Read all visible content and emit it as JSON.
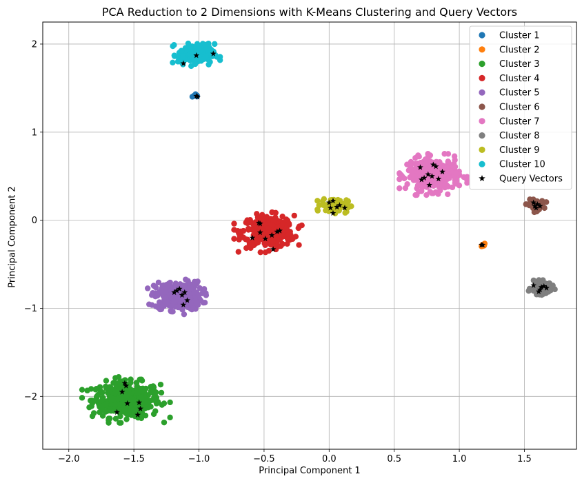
{
  "chart_data": {
    "type": "scatter",
    "title": "PCA Reduction to 2 Dimensions with K-Means Clustering and Query Vectors",
    "xlabel": "Principal Component 1",
    "ylabel": "Principal Component 2",
    "xlim": [
      -2.2,
      1.9
    ],
    "ylim": [
      -2.6,
      2.25
    ],
    "x_ticks": [
      -2.0,
      -1.5,
      -1.0,
      -0.5,
      0.0,
      0.5,
      1.0,
      1.5
    ],
    "x_tick_labels": [
      "−2.0",
      "−1.5",
      "−1.0",
      "−0.5",
      "0.0",
      "0.5",
      "1.0",
      "1.5"
    ],
    "y_ticks": [
      -2,
      -1,
      0,
      1,
      2
    ],
    "y_tick_labels": [
      "−2",
      "−1",
      "0",
      "1",
      "2"
    ],
    "grid": true,
    "legend_position": "top-right",
    "series": [
      {
        "name": "Cluster 1",
        "color": "#1f77b4",
        "center": [
          -1.02,
          1.41
        ],
        "spread": [
          0.015,
          0.015
        ],
        "count": 8
      },
      {
        "name": "Cluster 2",
        "color": "#ff7f0e",
        "center": [
          1.18,
          -0.28
        ],
        "spread": [
          0.012,
          0.012
        ],
        "count": 8
      },
      {
        "name": "Cluster 3",
        "color": "#2ca02c",
        "center": [
          -1.56,
          -2.04
        ],
        "spread": [
          0.13,
          0.1
        ],
        "count": 380
      },
      {
        "name": "Cluster 4",
        "color": "#d62728",
        "center": [
          -0.47,
          -0.13
        ],
        "spread": [
          0.1,
          0.09
        ],
        "count": 300
      },
      {
        "name": "Cluster 5",
        "color": "#9467bd",
        "center": [
          -1.16,
          -0.86
        ],
        "spread": [
          0.09,
          0.08
        ],
        "count": 260
      },
      {
        "name": "Cluster 6",
        "color": "#8c564b",
        "center": [
          1.59,
          0.17
        ],
        "spread": [
          0.03,
          0.03
        ],
        "count": 60
      },
      {
        "name": "Cluster 7",
        "color": "#e377c2",
        "center": [
          0.8,
          0.52
        ],
        "spread": [
          0.1,
          0.09
        ],
        "count": 300
      },
      {
        "name": "Cluster 8",
        "color": "#7f7f7f",
        "center": [
          1.63,
          -0.77
        ],
        "spread": [
          0.04,
          0.035
        ],
        "count": 90
      },
      {
        "name": "Cluster 9",
        "color": "#bcbd22",
        "center": [
          0.04,
          0.17
        ],
        "spread": [
          0.05,
          0.04
        ],
        "count": 100
      },
      {
        "name": "Cluster 10",
        "color": "#17becf",
        "center": [
          -1.02,
          1.88
        ],
        "spread": [
          0.07,
          0.06
        ],
        "count": 150
      }
    ],
    "query_vectors": {
      "name": "Query Vectors",
      "color": "#000000",
      "points": [
        [
          -1.02,
          1.41
        ],
        [
          -1.01,
          1.4
        ],
        [
          -1.12,
          1.78
        ],
        [
          -1.02,
          1.87
        ],
        [
          -0.89,
          1.89
        ],
        [
          1.18,
          -0.28
        ],
        [
          1.17,
          -0.28
        ],
        [
          -1.59,
          -1.95
        ],
        [
          -1.57,
          -1.85
        ],
        [
          -1.56,
          -1.88
        ],
        [
          -1.55,
          -2.08
        ],
        [
          -1.63,
          -2.18
        ],
        [
          -1.46,
          -2.07
        ],
        [
          -1.47,
          -2.21
        ],
        [
          -1.45,
          -2.14
        ],
        [
          -0.54,
          -0.03
        ],
        [
          -0.53,
          -0.04
        ],
        [
          -0.59,
          -0.2
        ],
        [
          -0.53,
          -0.14
        ],
        [
          -0.49,
          -0.21
        ],
        [
          -0.44,
          -0.17
        ],
        [
          -0.4,
          -0.13
        ],
        [
          -0.38,
          -0.12
        ],
        [
          -0.43,
          -0.33
        ],
        [
          -1.17,
          -0.8
        ],
        [
          -1.15,
          -0.78
        ],
        [
          -1.13,
          -0.85
        ],
        [
          -1.11,
          -0.82
        ],
        [
          -1.09,
          -0.91
        ],
        [
          -1.12,
          -0.96
        ],
        [
          -1.19,
          -0.82
        ],
        [
          1.57,
          0.2
        ],
        [
          1.59,
          0.14
        ],
        [
          1.6,
          0.18
        ],
        [
          1.62,
          0.16
        ],
        [
          1.58,
          0.16
        ],
        [
          0.7,
          0.6
        ],
        [
          0.71,
          0.46
        ],
        [
          0.73,
          0.48
        ],
        [
          0.76,
          0.52
        ],
        [
          0.77,
          0.4
        ],
        [
          0.8,
          0.63
        ],
        [
          0.82,
          0.61
        ],
        [
          0.84,
          0.47
        ],
        [
          0.87,
          0.55
        ],
        [
          0.79,
          0.5
        ],
        [
          1.57,
          -0.74
        ],
        [
          1.61,
          -0.81
        ],
        [
          1.63,
          -0.76
        ],
        [
          1.65,
          -0.75
        ],
        [
          1.67,
          -0.77
        ],
        [
          1.62,
          -0.79
        ],
        [
          0.0,
          0.2
        ],
        [
          0.03,
          0.22
        ],
        [
          0.03,
          0.08
        ],
        [
          0.06,
          0.15
        ],
        [
          0.08,
          0.17
        ],
        [
          0.12,
          0.14
        ],
        [
          0.01,
          0.14
        ]
      ]
    }
  }
}
